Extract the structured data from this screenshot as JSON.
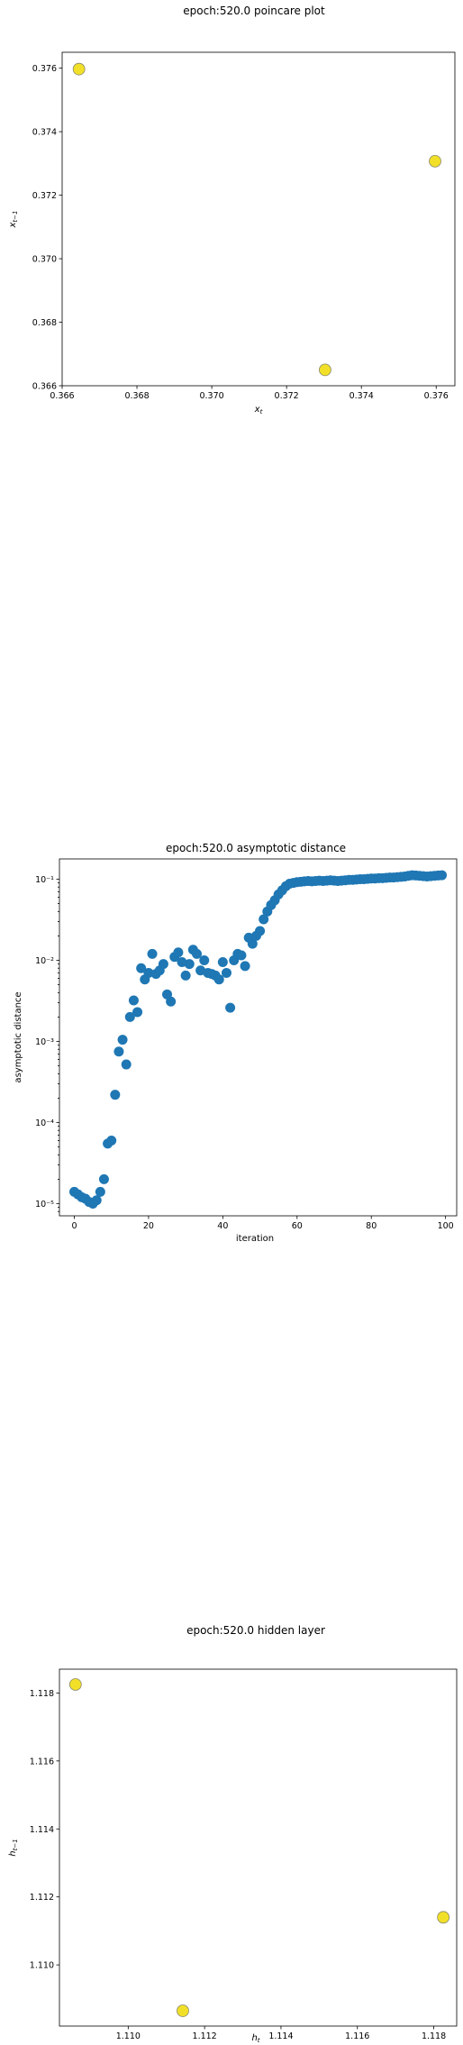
{
  "chart_data": [
    {
      "type": "scatter",
      "title": "epoch:520.0 poincare plot",
      "xlabel": "x_t",
      "ylabel": "x_{t−1}",
      "xlim": [
        0.366,
        0.3765
      ],
      "ylim": [
        0.366,
        0.3765
      ],
      "xticks": [
        "0.366",
        "0.368",
        "0.370",
        "0.372",
        "0.374",
        "0.376"
      ],
      "yticks": [
        "0.366",
        "0.368",
        "0.370",
        "0.372",
        "0.374",
        "0.376"
      ],
      "grid": false,
      "point_color": "#f2e028",
      "points": [
        {
          "x": 0.36645,
          "y": 0.37597
        },
        {
          "x": 0.37303,
          "y": 0.3665
        },
        {
          "x": 0.37597,
          "y": 0.37307
        }
      ]
    },
    {
      "type": "scatter",
      "title": "epoch:520.0 asymptotic distance",
      "xlabel": "iteration",
      "ylabel": "asymptotic distance",
      "xlim": [
        -4,
        103
      ],
      "ylim_log10": [
        -5.15,
        -0.75
      ],
      "yscale": "log",
      "xticks": [
        "0",
        "20",
        "40",
        "60",
        "80",
        "100"
      ],
      "yticks": [
        "10⁻⁵",
        "10⁻⁴",
        "10⁻³",
        "10⁻²",
        "10⁻¹"
      ],
      "grid": false,
      "point_color": "#1f77b4",
      "x": [
        0,
        1,
        2,
        3,
        4,
        5,
        6,
        7,
        8,
        9,
        10,
        11,
        12,
        13,
        14,
        15,
        16,
        17,
        18,
        19,
        20,
        21,
        22,
        23,
        24,
        25,
        26,
        27,
        28,
        29,
        30,
        31,
        32,
        33,
        34,
        35,
        36,
        37,
        38,
        39,
        40,
        41,
        42,
        43,
        44,
        45,
        46,
        47,
        48,
        49,
        50,
        51,
        52,
        53,
        54,
        55,
        56,
        57,
        58,
        59,
        60,
        61,
        62,
        63,
        64,
        65,
        66,
        67,
        68,
        69,
        70,
        71,
        72,
        73,
        74,
        75,
        76,
        77,
        78,
        79,
        80,
        81,
        82,
        83,
        84,
        85,
        86,
        87,
        88,
        89,
        90,
        91,
        92,
        93,
        94,
        95,
        96,
        97,
        98,
        99
      ],
      "y": [
        1.4e-05,
        1.3e-05,
        1.2e-05,
        1.15e-05,
        1.05e-05,
        1e-05,
        1.1e-05,
        1.4e-05,
        2e-05,
        5.5e-05,
        6e-05,
        0.00022,
        0.00075,
        0.00105,
        0.00052,
        0.002,
        0.0032,
        0.0023,
        0.008,
        0.0058,
        0.007,
        0.012,
        0.0068,
        0.0075,
        0.009,
        0.0038,
        0.0031,
        0.011,
        0.0125,
        0.0095,
        0.0065,
        0.009,
        0.0135,
        0.012,
        0.0075,
        0.01,
        0.007,
        0.0068,
        0.0065,
        0.0058,
        0.0095,
        0.007,
        0.0026,
        0.01,
        0.012,
        0.0115,
        0.0085,
        0.019,
        0.016,
        0.02,
        0.023,
        0.032,
        0.04,
        0.048,
        0.055,
        0.065,
        0.073,
        0.082,
        0.088,
        0.09,
        0.092,
        0.093,
        0.094,
        0.095,
        0.094,
        0.095,
        0.096,
        0.095,
        0.096,
        0.097,
        0.096,
        0.095,
        0.096,
        0.097,
        0.098,
        0.098,
        0.099,
        0.1,
        0.1,
        0.101,
        0.102,
        0.102,
        0.103,
        0.103,
        0.104,
        0.105,
        0.105,
        0.106,
        0.107,
        0.108,
        0.11,
        0.112,
        0.111,
        0.11,
        0.109,
        0.108,
        0.109,
        0.11,
        0.111,
        0.112
      ]
    },
    {
      "type": "scatter",
      "title": "epoch:520.0 hidden layer",
      "xlabel": "h_t",
      "ylabel": "h_{t−1}",
      "xlim": [
        1.1082,
        1.1186
      ],
      "ylim": [
        1.1082,
        1.1187
      ],
      "xticks": [
        "1.110",
        "1.112",
        "1.114",
        "1.116",
        "1.118"
      ],
      "yticks": [
        "1.110",
        "1.112",
        "1.114",
        "1.116",
        "1.118"
      ],
      "grid": false,
      "point_color": "#f2e028",
      "points": [
        {
          "x": 1.10862,
          "y": 1.11825
        },
        {
          "x": 1.11143,
          "y": 1.10865
        },
        {
          "x": 1.11825,
          "y": 1.1114
        }
      ]
    }
  ]
}
